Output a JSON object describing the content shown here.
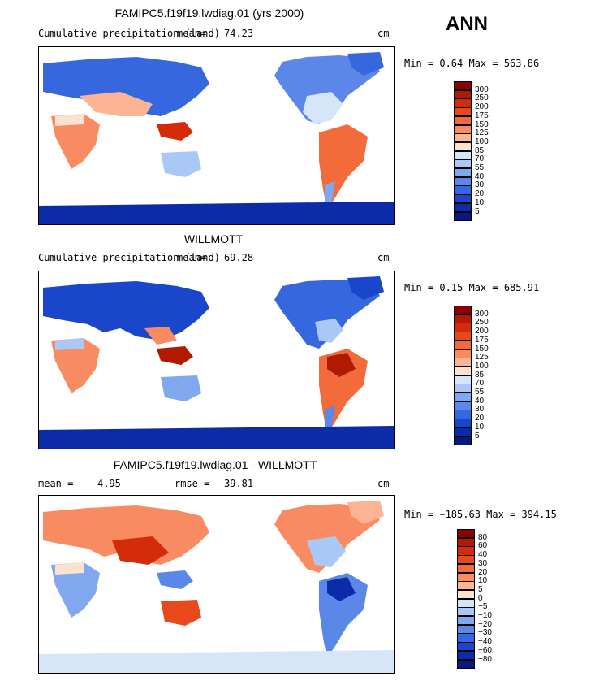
{
  "season": "ANN",
  "chart_data": [
    {
      "type": "heatmap",
      "title": "FAMIPC5.f19f19.lwdiag.01 (yrs 2000)",
      "subtitle_left": "Cumulative precipitation (land)",
      "mean_label": "mean=",
      "mean_value": "74.23",
      "units": "cm",
      "stats": "Min =    0.64 Max = 563.86",
      "colorbar_levels": [
        "300",
        "250",
        "200",
        "175",
        "150",
        "125",
        "100",
        "85",
        "70",
        "55",
        "40",
        "30",
        "20",
        "10",
        "5"
      ],
      "colorbar_colors": [
        "#8b0000",
        "#b01a00",
        "#d42b0a",
        "#e8491b",
        "#f36a3b",
        "#f98b63",
        "#fcb493",
        "#fde3cf",
        "#d6e6f9",
        "#aac8f5",
        "#80a8ef",
        "#5a87e8",
        "#3767de",
        "#1a46cc",
        "#0c2ba8",
        "#041a80"
      ]
    },
    {
      "type": "heatmap",
      "title": "WILLMOTT",
      "subtitle_left": "Cumulative precipitation (land)",
      "mean_label": "mean=",
      "mean_value": "69.28",
      "units": "cm",
      "stats": "Min =    0.15 Max = 685.91",
      "colorbar_levels": [
        "300",
        "250",
        "200",
        "175",
        "150",
        "125",
        "100",
        "85",
        "70",
        "55",
        "40",
        "30",
        "20",
        "10",
        "5"
      ],
      "colorbar_colors": [
        "#8b0000",
        "#b01a00",
        "#d42b0a",
        "#e8491b",
        "#f36a3b",
        "#f98b63",
        "#fcb493",
        "#fde3cf",
        "#d6e6f9",
        "#aac8f5",
        "#80a8ef",
        "#5a87e8",
        "#3767de",
        "#1a46cc",
        "#0c2ba8",
        "#041a80"
      ]
    },
    {
      "type": "heatmap",
      "title": "FAMIPC5.f19f19.lwdiag.01 - WILLMOTT",
      "mean_label": "mean =",
      "mean_value": "4.95",
      "rmse_label": "rmse =",
      "rmse_value": "39.81",
      "units": "cm",
      "stats": "Min = −185.63 Max = 394.15",
      "colorbar_levels": [
        "80",
        "60",
        "40",
        "30",
        "20",
        "10",
        "5",
        "0",
        "−5",
        "−10",
        "−20",
        "−30",
        "−40",
        "−60",
        "−80"
      ],
      "colorbar_colors": [
        "#8b0000",
        "#b01a00",
        "#d42b0a",
        "#e8491b",
        "#f36a3b",
        "#f98b63",
        "#fcb493",
        "#fde3cf",
        "#d6e6f9",
        "#aac8f5",
        "#80a8ef",
        "#5a87e8",
        "#3767de",
        "#1a46cc",
        "#0c2ba8",
        "#041a80"
      ]
    }
  ]
}
